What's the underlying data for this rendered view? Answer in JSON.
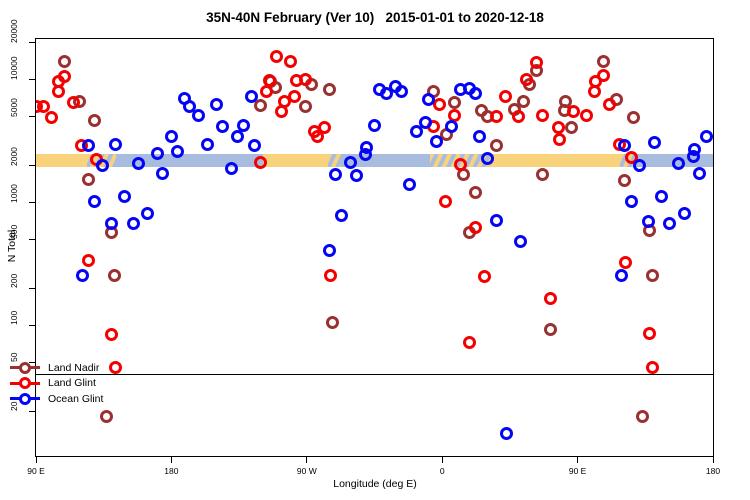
{
  "title": "35N-40N February (Ver 10)   2015-01-01 to 2020-12-18",
  "chart_data": {
    "type": "scatter",
    "title": "35N-40N February (Ver 10)   2015-01-01 to 2020-12-18",
    "xlabel": "Longitude (deg E)",
    "ylabel": "N Total",
    "grid": false,
    "x_axis": {
      "min": 90,
      "max": 540,
      "ticks": [
        {
          "value": 90,
          "label": "90 E"
        },
        {
          "value": 180,
          "label": "180"
        },
        {
          "value": 270,
          "label": "90 W"
        },
        {
          "value": 360,
          "label": "0"
        },
        {
          "value": 450,
          "label": "90 E"
        },
        {
          "value": 540,
          "label": "180"
        }
      ]
    },
    "y_axis": {
      "scale": "log",
      "min": 8.6,
      "max": 21500,
      "ticks": [
        {
          "value": 20,
          "label": "20"
        },
        {
          "value": 50,
          "label": "50"
        },
        {
          "value": 100,
          "label": "100"
        },
        {
          "value": 200,
          "label": "200"
        },
        {
          "value": 500,
          "label": "500"
        },
        {
          "value": 1000,
          "label": "1000"
        },
        {
          "value": 2000,
          "label": "2000"
        },
        {
          "value": 5000,
          "label": "5000"
        },
        {
          "value": 10000,
          "label": "10000"
        },
        {
          "value": 20000,
          "label": "20000"
        }
      ]
    },
    "threshold_line": {
      "y": 40,
      "color": "#000000"
    },
    "bands": {
      "y_from": 1950,
      "y_to": 2490,
      "colors": {
        "orange": "#F9D27C",
        "blue": "#A7BCDE"
      },
      "segments": [
        {
          "from": 90,
          "to": 124,
          "fill": "orange"
        },
        {
          "from": 124,
          "to": 143,
          "fill": "mix"
        },
        {
          "from": 143,
          "to": 241,
          "fill": "blue"
        },
        {
          "from": 241,
          "to": 284,
          "fill": "orange"
        },
        {
          "from": 284,
          "to": 293,
          "fill": "mix"
        },
        {
          "from": 293,
          "to": 352,
          "fill": "blue"
        },
        {
          "from": 352,
          "to": 392,
          "fill": "mix"
        },
        {
          "from": 392,
          "to": 478,
          "fill": "orange"
        },
        {
          "from": 478,
          "to": 489,
          "fill": "mix"
        },
        {
          "from": 489,
          "to": 540,
          "fill": "blue"
        }
      ]
    },
    "legend": {
      "position": "bottom-left",
      "items": [
        {
          "label": "Land Nadir",
          "color": "#9B3030"
        },
        {
          "label": "Land Glint",
          "color": "#F50000"
        },
        {
          "label": "Ocean Glint",
          "color": "#0505F5"
        }
      ]
    },
    "series": [
      {
        "name": "Land Nadir",
        "color": "#9B3030",
        "points": [
          [
            109,
            14000
          ],
          [
            119,
            6700
          ],
          [
            129,
            4700
          ],
          [
            239,
            6200
          ],
          [
            246,
            9600
          ],
          [
            249,
            8700
          ],
          [
            273,
            9100
          ],
          [
            285,
            8300
          ],
          [
            269,
            6100
          ],
          [
            354,
            8100
          ],
          [
            368,
            6500
          ],
          [
            363,
            3600
          ],
          [
            386,
            5600
          ],
          [
            390,
            5000
          ],
          [
            396,
            2900
          ],
          [
            423,
            11800
          ],
          [
            418,
            9100
          ],
          [
            414,
            6600
          ],
          [
            408,
            5700
          ],
          [
            441,
            5600
          ],
          [
            442,
            6700
          ],
          [
            446,
            4050
          ],
          [
            467,
            14000
          ],
          [
            476,
            6850
          ],
          [
            487,
            4900
          ],
          [
            125,
            1530
          ],
          [
            140,
            575
          ],
          [
            142,
            252
          ],
          [
            374,
            1700
          ],
          [
            382,
            1200
          ],
          [
            378,
            570
          ],
          [
            427,
            1700
          ],
          [
            481,
            1500
          ],
          [
            498,
            590
          ],
          [
            500,
            254
          ],
          [
            287,
            106
          ],
          [
            432,
            93
          ],
          [
            493,
            18
          ],
          [
            137,
            18
          ]
        ]
      },
      {
        "name": "Land Glint",
        "color": "#F50000",
        "points": [
          [
            109,
            10700
          ],
          [
            105,
            9700
          ],
          [
            105,
            8000
          ],
          [
            95,
            6050
          ],
          [
            115,
            6500
          ],
          [
            100,
            4900
          ],
          [
            90,
            6100
          ],
          [
            120,
            2900
          ],
          [
            130,
            2260
          ],
          [
            250,
            15600
          ],
          [
            259,
            14000
          ],
          [
            245,
            9900
          ],
          [
            243,
            8000
          ],
          [
            263,
            9900
          ],
          [
            269,
            10000
          ],
          [
            262,
            7360
          ],
          [
            255,
            6600
          ],
          [
            253,
            5480
          ],
          [
            275,
            3760
          ],
          [
            282,
            4050
          ],
          [
            277,
            3420
          ],
          [
            354,
            4200
          ],
          [
            358,
            6350
          ],
          [
            368,
            5100
          ],
          [
            396,
            5000
          ],
          [
            411,
            5000
          ],
          [
            402,
            7360
          ],
          [
            416,
            10000
          ],
          [
            423,
            13800
          ],
          [
            427,
            5100
          ],
          [
            437,
            4050
          ],
          [
            447,
            5480
          ],
          [
            456,
            5100
          ],
          [
            438,
            3280
          ],
          [
            467,
            10750
          ],
          [
            462,
            9600
          ],
          [
            461,
            7960
          ],
          [
            471,
            6350
          ],
          [
            478,
            2960
          ],
          [
            486,
            2310
          ],
          [
            125,
            334
          ],
          [
            286,
            255
          ],
          [
            372,
            2060
          ],
          [
            362,
            1010
          ],
          [
            382,
            630
          ],
          [
            388,
            250
          ],
          [
            239,
            2100
          ],
          [
            482,
            327
          ],
          [
            140,
            84
          ],
          [
            143,
            45
          ],
          [
            432,
            164
          ],
          [
            378,
            73
          ],
          [
            498,
            86
          ],
          [
            500,
            45
          ]
        ]
      },
      {
        "name": "Ocean Glint",
        "color": "#0505F5",
        "points": [
          [
            125,
            2900
          ],
          [
            143,
            2960
          ],
          [
            189,
            7050
          ],
          [
            192,
            6050
          ],
          [
            198,
            5100
          ],
          [
            210,
            6350
          ],
          [
            214,
            4200
          ],
          [
            224,
            3480
          ],
          [
            228,
            4280
          ],
          [
            233,
            7360
          ],
          [
            180,
            3480
          ],
          [
            171,
            2490
          ],
          [
            184,
            2590
          ],
          [
            204,
            2960
          ],
          [
            235,
            2900
          ],
          [
            318,
            8260
          ],
          [
            323,
            7680
          ],
          [
            329,
            8900
          ],
          [
            333,
            7960
          ],
          [
            315,
            4280
          ],
          [
            310,
            2790
          ],
          [
            349,
            4450
          ],
          [
            343,
            3820
          ],
          [
            351,
            6850
          ],
          [
            366,
            4130
          ],
          [
            356,
            3140
          ],
          [
            372,
            8260
          ],
          [
            378,
            8570
          ],
          [
            382,
            7800
          ],
          [
            385,
            3480
          ],
          [
            481,
            2900
          ],
          [
            501,
            3080
          ],
          [
            536,
            3480
          ],
          [
            528,
            2680
          ],
          [
            134,
            2000
          ],
          [
            158,
            2080
          ],
          [
            174,
            1730
          ],
          [
            129,
            1010
          ],
          [
            149,
            1110
          ],
          [
            164,
            820
          ],
          [
            140,
            680
          ],
          [
            155,
            670
          ],
          [
            121,
            256
          ],
          [
            220,
            1900
          ],
          [
            309,
            2480
          ],
          [
            299,
            2120
          ],
          [
            289,
            1700
          ],
          [
            303,
            1670
          ],
          [
            338,
            1400
          ],
          [
            293,
            780
          ],
          [
            285,
            410
          ],
          [
            390,
            2300
          ],
          [
            491,
            2000
          ],
          [
            517,
            2080
          ],
          [
            527,
            2370
          ],
          [
            531,
            1730
          ],
          [
            486,
            1010
          ],
          [
            506,
            1110
          ],
          [
            521,
            820
          ],
          [
            497,
            700
          ],
          [
            511,
            680
          ],
          [
            396,
            710
          ],
          [
            412,
            480
          ],
          [
            479,
            256
          ],
          [
            403,
            13
          ]
        ]
      }
    ]
  }
}
